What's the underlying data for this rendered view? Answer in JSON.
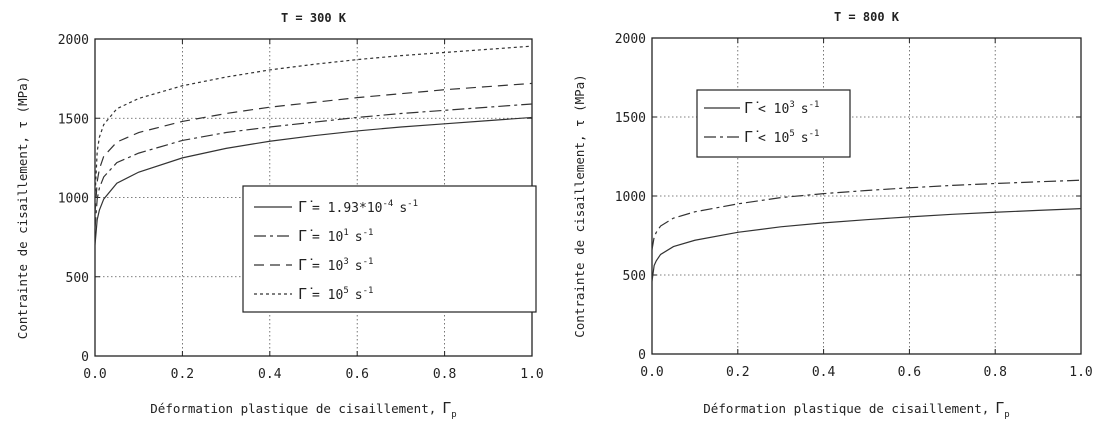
{
  "chart_data": [
    {
      "type": "line",
      "title": "T = 300 K",
      "xlabel": "Déformation plastique de cisaillement,",
      "xlabel_symbol": "Γ",
      "xlabel_subscript": "p",
      "ylabel": "Contrainte de cisaillement, τ (MPa)",
      "xlim": [
        0,
        1.0
      ],
      "ylim": [
        0,
        2000
      ],
      "xticks": [
        "0.0",
        "0.2",
        "0.4",
        "0.6",
        "0.8",
        "1.0"
      ],
      "yticks": [
        "0",
        "500",
        "1000",
        "1500",
        "2000"
      ],
      "grid": true,
      "legend_position": "center-right",
      "x": [
        0,
        0.005,
        0.01,
        0.02,
        0.05,
        0.1,
        0.2,
        0.3,
        0.4,
        0.5,
        0.6,
        0.7,
        0.8,
        0.9,
        1.0
      ],
      "series": [
        {
          "legend_symbol": "Γ̇",
          "legend_value": "= 1.93*10",
          "legend_exp": "-4",
          "legend_unit": "s",
          "legend_unit_exp": "-1",
          "style": "solid",
          "values": [
            700,
            860,
            920,
            990,
            1090,
            1160,
            1250,
            1310,
            1355,
            1390,
            1420,
            1445,
            1465,
            1485,
            1505
          ]
        },
        {
          "legend_symbol": "Γ̇",
          "legend_value": "= 10",
          "legend_exp": "1",
          "legend_unit": "s",
          "legend_unit_exp": "-1",
          "style": "dashdot",
          "values": [
            800,
            990,
            1060,
            1130,
            1220,
            1280,
            1360,
            1410,
            1445,
            1475,
            1505,
            1530,
            1550,
            1570,
            1590
          ]
        },
        {
          "legend_symbol": "Γ̇",
          "legend_value": "= 10",
          "legend_exp": "3",
          "legend_unit": "s",
          "legend_unit_exp": "-1",
          "style": "longdash",
          "values": [
            900,
            1100,
            1180,
            1260,
            1350,
            1410,
            1480,
            1530,
            1570,
            1600,
            1630,
            1655,
            1680,
            1700,
            1720
          ]
        },
        {
          "legend_symbol": "Γ̇",
          "legend_value": "= 10",
          "legend_exp": "5",
          "legend_unit": "s",
          "legend_unit_exp": "-1",
          "style": "dotted",
          "values": [
            1000,
            1290,
            1380,
            1460,
            1560,
            1625,
            1705,
            1760,
            1805,
            1840,
            1870,
            1895,
            1915,
            1935,
            1955
          ]
        }
      ]
    },
    {
      "type": "line",
      "title": "T = 800 K",
      "xlabel": "Déformation plastique de cisaillement,",
      "xlabel_symbol": "Γ",
      "xlabel_subscript": "p",
      "ylabel": "Contrainte de cisaillement, τ (MPa)",
      "xlim": [
        0,
        1.0
      ],
      "ylim": [
        0,
        2000
      ],
      "xticks": [
        "0.0",
        "0.2",
        "0.4",
        "0.6",
        "0.8",
        "1.0"
      ],
      "yticks": [
        "0",
        "500",
        "1000",
        "1500",
        "2000"
      ],
      "grid": true,
      "legend_position": "top-left",
      "x": [
        0,
        0.005,
        0.01,
        0.02,
        0.05,
        0.1,
        0.2,
        0.3,
        0.4,
        0.5,
        0.6,
        0.7,
        0.8,
        0.9,
        1.0
      ],
      "series": [
        {
          "legend_symbol": "Γ̇",
          "legend_value": "< 10",
          "legend_exp": "3",
          "legend_unit": "s",
          "legend_unit_exp": "-1",
          "style": "solid",
          "values": [
            460,
            560,
            590,
            630,
            680,
            720,
            770,
            805,
            830,
            850,
            868,
            884,
            897,
            909,
            920
          ]
        },
        {
          "legend_symbol": "Γ̇",
          "legend_value": "< 10",
          "legend_exp": "5",
          "legend_unit": "s",
          "legend_unit_exp": "-1",
          "style": "dashdot",
          "values": [
            660,
            740,
            770,
            810,
            860,
            900,
            950,
            990,
            1015,
            1035,
            1052,
            1067,
            1079,
            1090,
            1100
          ]
        }
      ]
    }
  ]
}
